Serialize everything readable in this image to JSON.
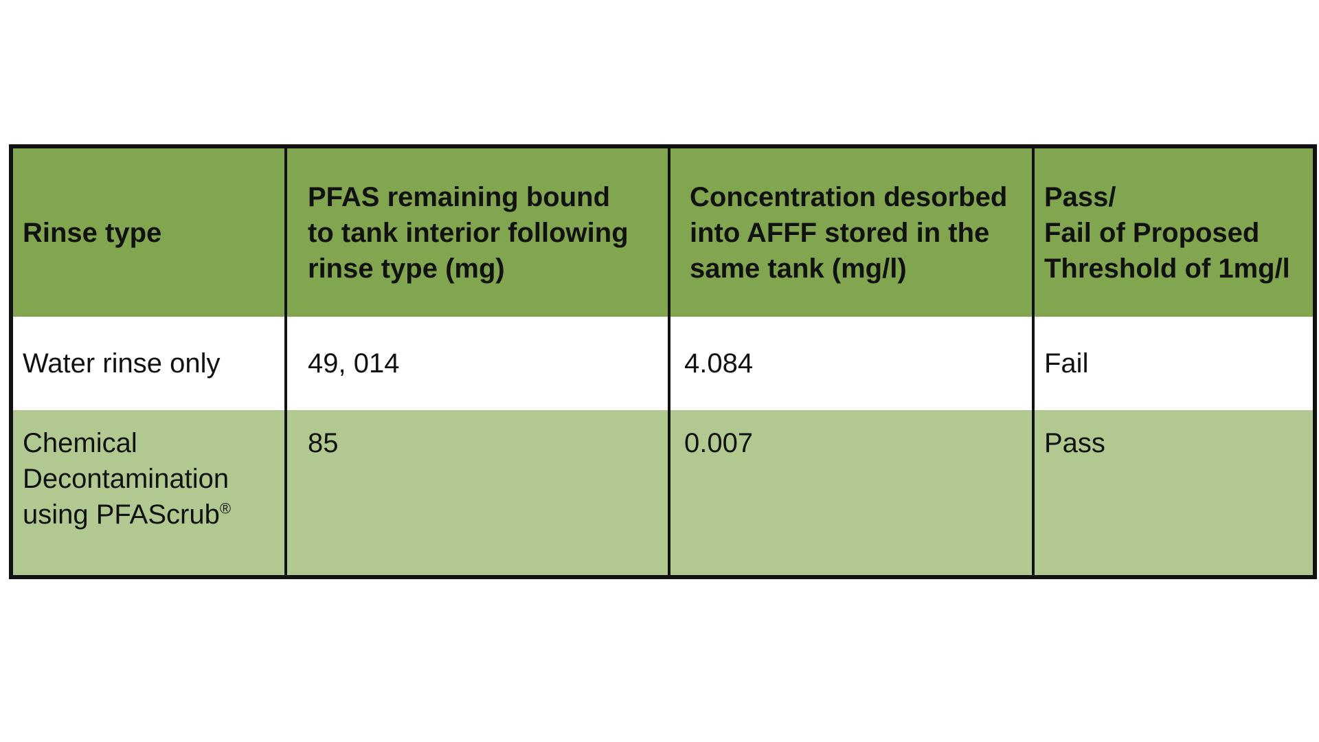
{
  "table": {
    "headers": [
      "Rinse type",
      "PFAS remaining bound\nto tank interior following\nrinse type (mg)",
      "Concentration desorbed\ninto AFFF stored in the\nsame tank (mg/l)",
      "Pass/\nFail of Proposed\nThreshold of 1mg/l"
    ],
    "rows": [
      {
        "rinse_type": "Water rinse only",
        "pfas_remaining": "49, 014",
        "concentration": "4.084",
        "result": "Fail"
      },
      {
        "rinse_type": "Chemical\nDecontamination\nusing  PFAScrub",
        "rinse_type_mark": "®",
        "pfas_remaining": "85",
        "concentration": "0.007",
        "result": "Pass"
      }
    ]
  },
  "colors": {
    "header_bg": "#82a64f",
    "row2_bg": "#b1c891",
    "row1_bg": "#ffffff",
    "border": "#111111"
  }
}
